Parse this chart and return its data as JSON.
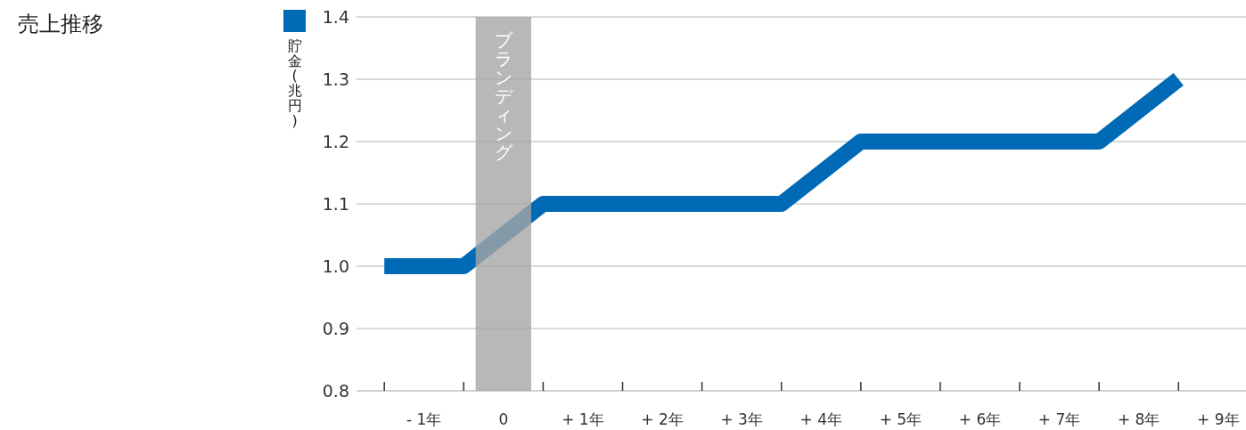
{
  "chart_data": {
    "type": "line",
    "title": "売上推移",
    "x": [
      -1.5,
      -0.5,
      0.5,
      3.5,
      4.5,
      7.5,
      8.5
    ],
    "series": [
      {
        "name": "貯金(兆円)",
        "color": "#006ab6",
        "values": [
          1.0,
          1.0,
          1.1,
          1.1,
          1.2,
          1.2,
          1.3
        ]
      }
    ],
    "xlim": [
      -1.85,
      9.35
    ],
    "xticks": [
      {
        "value": -1.5,
        "label": null
      },
      {
        "value": -0.5,
        "label": null
      },
      {
        "value": 0.5,
        "label": null
      },
      {
        "value": 1.5,
        "label": null
      },
      {
        "value": 2.5,
        "label": null
      },
      {
        "value": 3.5,
        "label": null
      },
      {
        "value": 4.5,
        "label": null
      },
      {
        "value": 5.5,
        "label": null
      },
      {
        "value": 6.5,
        "label": null
      },
      {
        "value": 7.5,
        "label": null
      },
      {
        "value": 8.5,
        "label": null
      },
      {
        "value": -1,
        "label": "- 1年"
      },
      {
        "value": 0,
        "label": "0"
      },
      {
        "value": 1,
        "label": "+ 1年"
      },
      {
        "value": 2,
        "label": "+ 2年"
      },
      {
        "value": 3,
        "label": "+ 3年"
      },
      {
        "value": 4,
        "label": "+ 4年"
      },
      {
        "value": 5,
        "label": "+ 5年"
      },
      {
        "value": 6,
        "label": "+ 6年"
      },
      {
        "value": 7,
        "label": "+ 7年"
      },
      {
        "value": 8,
        "label": "+ 8年"
      },
      {
        "value": 9,
        "label": "+ 9年"
      }
    ],
    "ylim": [
      0.8,
      1.4
    ],
    "yticks": [
      {
        "value": 0.8,
        "label": "0.8"
      },
      {
        "value": 0.9,
        "label": "0.9"
      },
      {
        "value": 1.0,
        "label": "1.0"
      },
      {
        "value": 1.1,
        "label": "1.1"
      },
      {
        "value": 1.2,
        "label": "1.2"
      },
      {
        "value": 1.3,
        "label": "1.3"
      },
      {
        "value": 1.4,
        "label": "1.4"
      }
    ],
    "bands": [
      {
        "axis": "x",
        "from": -0.35,
        "to": 0.35,
        "label": "ブランディング",
        "color": "#a6a6a6"
      }
    ],
    "grid": "y",
    "legend": "left",
    "marker": "none",
    "line_style": "solid"
  }
}
